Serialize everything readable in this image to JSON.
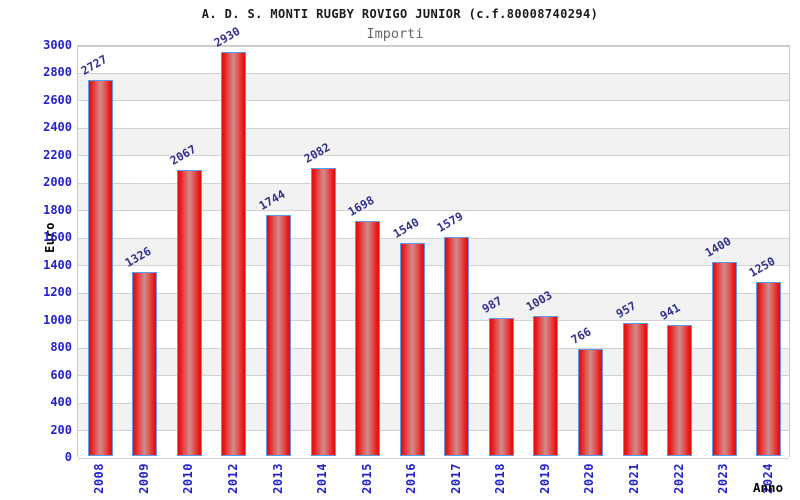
{
  "chart_data": {
    "type": "bar",
    "title": "A. D. S. MONTI RUGBY ROVIGO JUNIOR (c.f.80008740294)",
    "subtitle": "Importi",
    "xlabel": "Anno",
    "ylabel": "Euro",
    "categories": [
      "2008",
      "2009",
      "2010",
      "2012",
      "2013",
      "2014",
      "2015",
      "2016",
      "2017",
      "2018",
      "2019",
      "2020",
      "2021",
      "2022",
      "2023",
      "2024"
    ],
    "values": [
      2727,
      1326,
      2067,
      2930,
      1744,
      2082,
      1698,
      1540,
      1579,
      987,
      1003,
      766,
      957,
      941,
      1400,
      1250
    ],
    "ylim": [
      0,
      3000
    ],
    "ytick_step": 200,
    "grid": true,
    "legend_position": "none",
    "colors": {
      "bar_edge": "#e8100f",
      "bar_mid": "#d08b8b",
      "bar_border": "#5b9ae8",
      "tick_label": "#2323cd",
      "value_label": "#32328e",
      "grid_line": "#d2d2d2",
      "band_gray": "#f2f2f2",
      "band_white": "#ffffff",
      "title": "#1a1a1a",
      "subtitle": "#666666",
      "axis_title": "#000000"
    }
  }
}
